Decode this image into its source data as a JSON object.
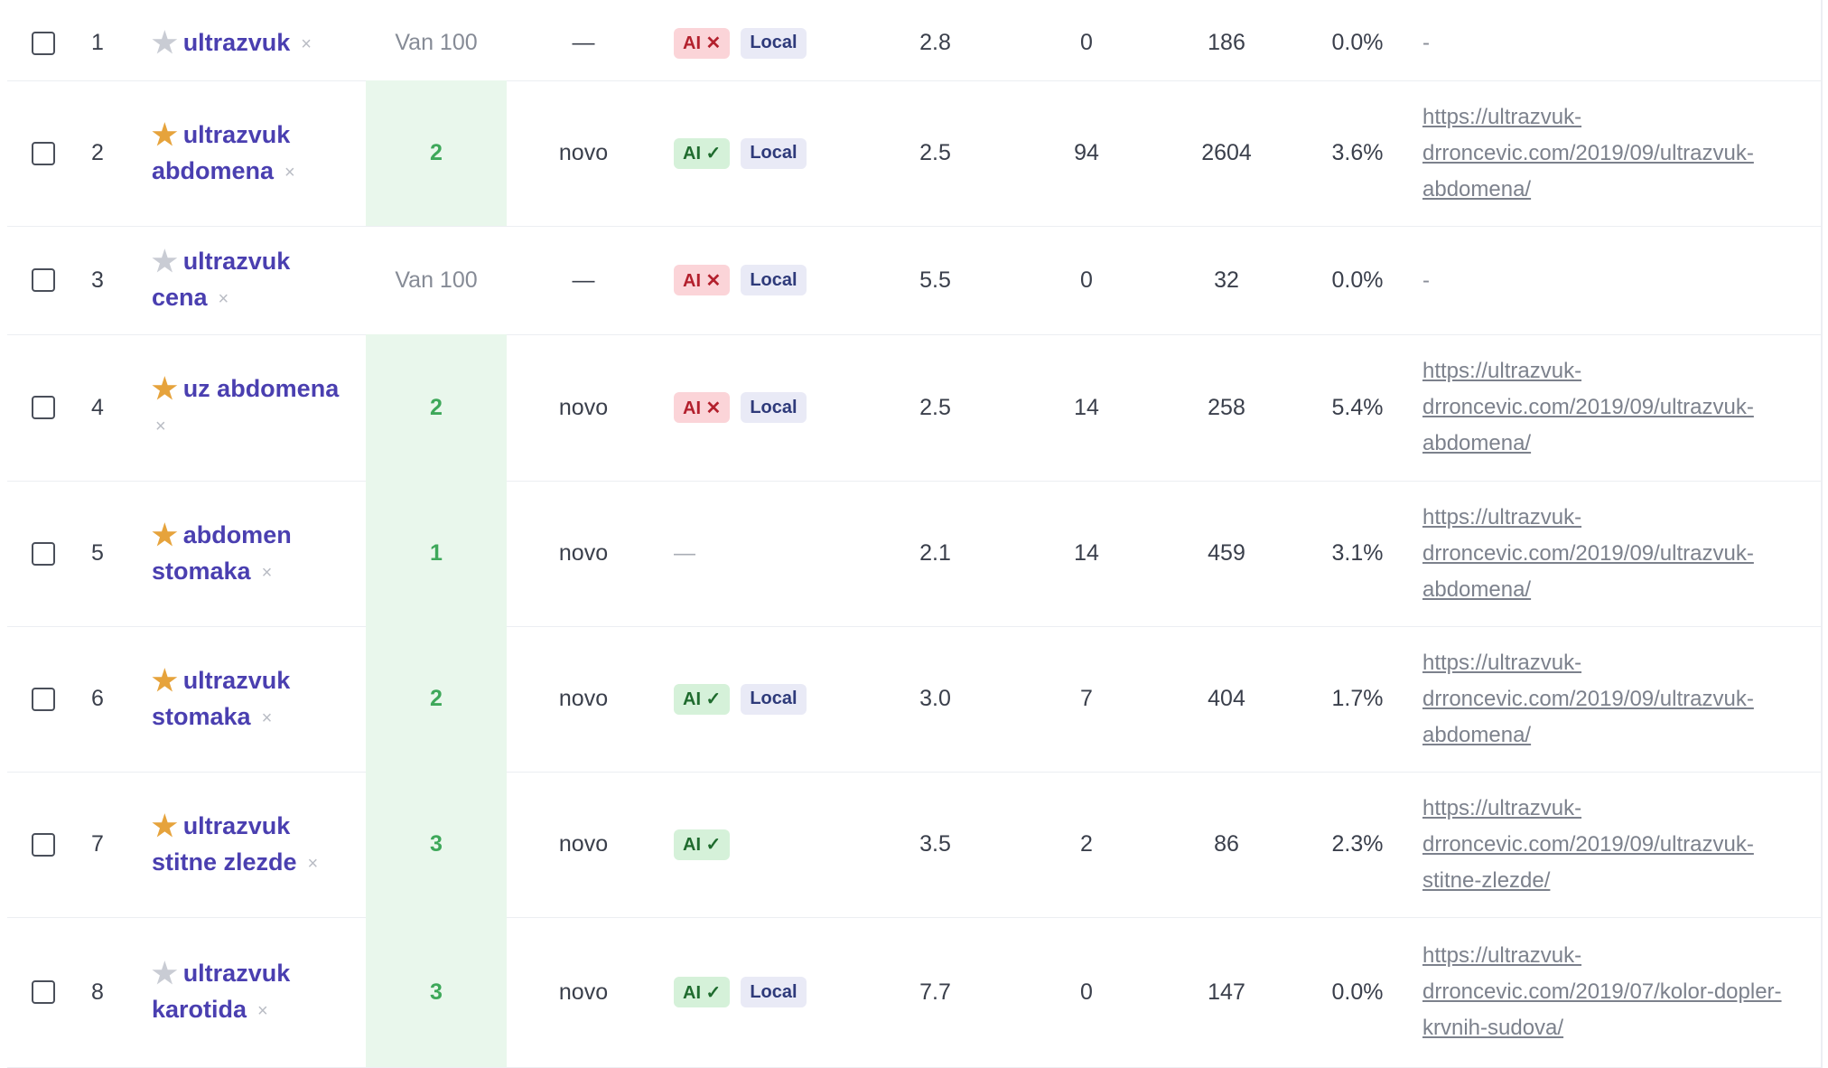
{
  "table": {
    "rows": [
      {
        "num": "1",
        "starred": false,
        "kw_line1": "ultrazvuk",
        "kw_line2": "",
        "remove": "×",
        "position": "Van 100",
        "ranked": false,
        "change": "—",
        "features": [
          {
            "text": "AI ✕",
            "kind": "ai-no"
          },
          {
            "text": "Local",
            "kind": "local"
          }
        ],
        "kd": "2.8",
        "traffic": "0",
        "volume": "186",
        "ctr": "0.0%",
        "url_lines": [
          "-"
        ]
      },
      {
        "num": "2",
        "starred": true,
        "kw_line1": "ultrazvuk",
        "kw_line2": "abdomena",
        "remove": "×",
        "position": "2",
        "ranked": true,
        "change": "novo",
        "features": [
          {
            "text": "AI ✓",
            "kind": "ai-yes"
          },
          {
            "text": "Local",
            "kind": "local"
          }
        ],
        "kd": "2.5",
        "traffic": "94",
        "volume": "2604",
        "ctr": "3.6%",
        "url_lines": [
          "https://ultrazvuk-",
          "drroncevic.com/2019/09/ultrazvuk-",
          "abdomena/"
        ]
      },
      {
        "num": "3",
        "starred": false,
        "kw_line1": "ultrazvuk",
        "kw_line2": "cena",
        "remove": "×",
        "position": "Van 100",
        "ranked": false,
        "change": "—",
        "features": [
          {
            "text": "AI ✕",
            "kind": "ai-no"
          },
          {
            "text": "Local",
            "kind": "local"
          }
        ],
        "kd": "5.5",
        "traffic": "0",
        "volume": "32",
        "ctr": "0.0%",
        "url_lines": [
          "-"
        ]
      },
      {
        "num": "4",
        "starred": true,
        "kw_line1": "uz abdomena",
        "kw_line2": "",
        "remove": "×",
        "position": "2",
        "ranked": true,
        "change": "novo",
        "features": [
          {
            "text": "AI ✕",
            "kind": "ai-no"
          },
          {
            "text": "Local",
            "kind": "local"
          }
        ],
        "kd": "2.5",
        "traffic": "14",
        "volume": "258",
        "ctr": "5.4%",
        "url_lines": [
          "https://ultrazvuk-",
          "drroncevic.com/2019/09/ultrazvuk-",
          "abdomena/"
        ]
      },
      {
        "num": "5",
        "starred": true,
        "kw_line1": "abdomen",
        "kw_line2": "stomaka",
        "remove": "×",
        "position": "1",
        "ranked": true,
        "change": "novo",
        "features": [],
        "features_empty": "—",
        "kd": "2.1",
        "traffic": "14",
        "volume": "459",
        "ctr": "3.1%",
        "url_lines": [
          "https://ultrazvuk-",
          "drroncevic.com/2019/09/ultrazvuk-",
          "abdomena/"
        ]
      },
      {
        "num": "6",
        "starred": true,
        "kw_line1": "ultrazvuk",
        "kw_line2": "stomaka",
        "remove": "×",
        "position": "2",
        "ranked": true,
        "change": "novo",
        "features": [
          {
            "text": "AI ✓",
            "kind": "ai-yes"
          },
          {
            "text": "Local",
            "kind": "local"
          }
        ],
        "kd": "3.0",
        "traffic": "7",
        "volume": "404",
        "ctr": "1.7%",
        "url_lines": [
          "https://ultrazvuk-",
          "drroncevic.com/2019/09/ultrazvuk-",
          "abdomena/"
        ]
      },
      {
        "num": "7",
        "starred": true,
        "kw_line1": "ultrazvuk",
        "kw_line2": "stitne zlezde",
        "remove": "×",
        "position": "3",
        "ranked": true,
        "change": "novo",
        "features": [
          {
            "text": "AI ✓",
            "kind": "ai-yes"
          }
        ],
        "kd": "3.5",
        "traffic": "2",
        "volume": "86",
        "ctr": "2.3%",
        "url_lines": [
          "https://ultrazvuk-",
          "drroncevic.com/2019/09/ultrazvuk-",
          "stitne-zlezde/"
        ]
      },
      {
        "num": "8",
        "starred": false,
        "kw_line1": "ultrazvuk",
        "kw_line2": "karotida",
        "remove": "×",
        "position": "3",
        "ranked": true,
        "change": "novo",
        "features": [
          {
            "text": "AI ✓",
            "kind": "ai-yes"
          },
          {
            "text": "Local",
            "kind": "local"
          }
        ],
        "kd": "7.7",
        "traffic": "0",
        "volume": "147",
        "ctr": "0.0%",
        "url_lines": [
          "https://ultrazvuk-",
          "drroncevic.com/2019/07/kolor-dopler-",
          "krvnih-sudova/"
        ]
      }
    ]
  }
}
